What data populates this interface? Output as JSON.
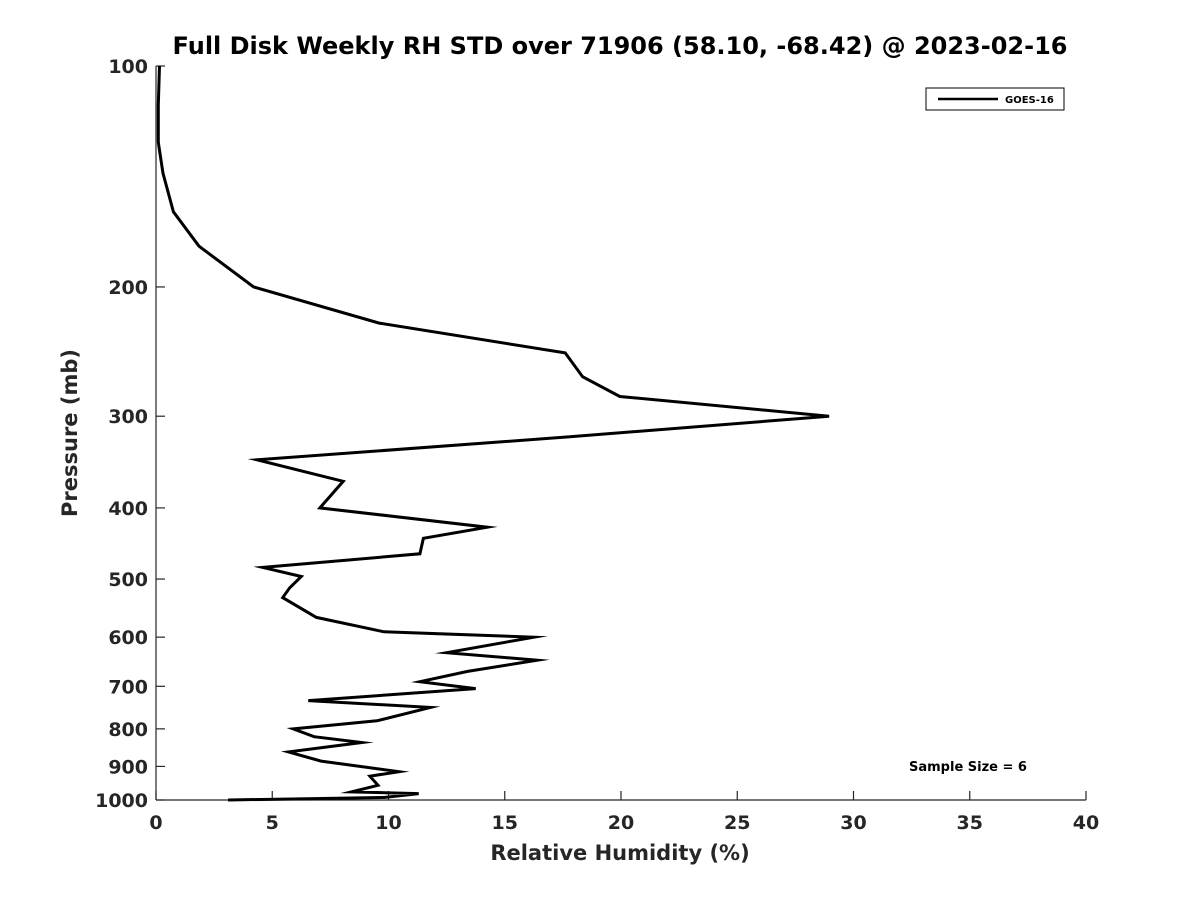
{
  "chart_data": {
    "type": "line",
    "title": "Full Disk Weekly RH STD over 71906 (58.10, -68.42) @ 2023-02-16",
    "xlabel": "Relative Humidity (%)",
    "ylabel": "Pressure (mb)",
    "xlim": [
      0,
      40
    ],
    "ylim": [
      100,
      1000
    ],
    "y_scale": "log",
    "y_reversed": true,
    "x_ticks": [
      "0",
      "5",
      "10",
      "15",
      "20",
      "25",
      "30",
      "35",
      "40"
    ],
    "y_ticks": [
      "100",
      "200",
      "300",
      "400",
      "500",
      "600",
      "700",
      "800",
      "900",
      "1000"
    ],
    "grid": false,
    "legend": {
      "placement": "top-right",
      "entries": [
        "GOES-16"
      ]
    },
    "annotation": "Sample Size = 6",
    "series": [
      {
        "name": "GOES-16",
        "color": "#000000",
        "x": [
          0.15,
          0.1,
          0.1,
          0.3,
          0.75,
          1.85,
          4.2,
          9.6,
          17.6,
          18.35,
          19.95,
          28.95,
          17.8,
          4.35,
          8.05,
          7.05,
          14.25,
          11.5,
          11.35,
          4.6,
          6.25,
          5.75,
          5.45,
          6.9,
          9.8,
          16.25,
          12.5,
          16.4,
          13.4,
          11.35,
          13.75,
          6.55,
          11.8,
          9.5,
          5.9,
          6.8,
          8.85,
          5.7,
          7.1,
          10.45,
          9.2,
          9.55,
          8.4,
          11.3,
          9.85,
          3.1
        ],
        "y": [
          100,
          113,
          127,
          140,
          158,
          176,
          200,
          224,
          246,
          265,
          282,
          300,
          320,
          344,
          368,
          400,
          425,
          440,
          462,
          482,
          496,
          514,
          530,
          564,
          590,
          600,
          630,
          645,
          668,
          690,
          705,
          732,
          748,
          780,
          800,
          820,
          835,
          860,
          885,
          915,
          928,
          955,
          975,
          980,
          992,
          1000
        ]
      }
    ]
  }
}
